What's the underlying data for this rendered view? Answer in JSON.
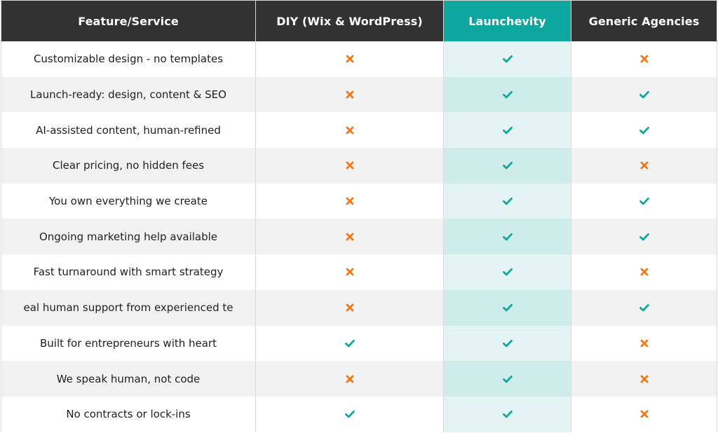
{
  "columns": [
    "Feature/Service",
    "DIY (Wix & WordPress)",
    "Launchevity",
    "Generic Agencies"
  ],
  "highlight_column": "Launchevity",
  "colors": {
    "header_bg": "#323232",
    "header_highlight_bg": "#0ea7a0",
    "check": "#11a79e",
    "cross": "#f07818",
    "highlight_light": "#e3f4f2",
    "highlight_dark": "#cdecea",
    "alt_row": "#f2f2f2"
  },
  "rows": [
    {
      "feature": "Customizable design - no templates",
      "diy": "cross",
      "launchevity": "check",
      "agencies": "cross"
    },
    {
      "feature": "Launch-ready: design, content & SEO",
      "diy": "cross",
      "launchevity": "check",
      "agencies": "check"
    },
    {
      "feature": "AI-assisted content, human-refined",
      "diy": "cross",
      "launchevity": "check",
      "agencies": "check"
    },
    {
      "feature": "Clear pricing, no hidden fees",
      "diy": "cross",
      "launchevity": "check",
      "agencies": "cross"
    },
    {
      "feature": "You own everything we create",
      "diy": "cross",
      "launchevity": "check",
      "agencies": "check"
    },
    {
      "feature": "Ongoing marketing help available",
      "diy": "cross",
      "launchevity": "check",
      "agencies": "check"
    },
    {
      "feature": "Fast turnaround with smart strategy",
      "diy": "cross",
      "launchevity": "check",
      "agencies": "cross"
    },
    {
      "feature": "eal human support from experienced te",
      "diy": "cross",
      "launchevity": "check",
      "agencies": "check"
    },
    {
      "feature": "Built for entrepreneurs with heart",
      "diy": "check",
      "launchevity": "check",
      "agencies": "cross"
    },
    {
      "feature": "We speak human, not code",
      "diy": "cross",
      "launchevity": "check",
      "agencies": "cross"
    },
    {
      "feature": "No contracts or lock-ins",
      "diy": "check",
      "launchevity": "check",
      "agencies": "cross"
    }
  ],
  "icons": {
    "check": "check-icon",
    "cross": "cross-icon"
  }
}
